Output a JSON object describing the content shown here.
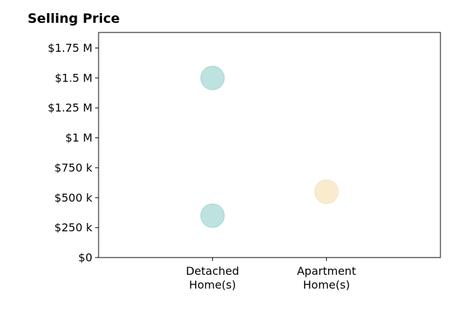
{
  "chart_data": {
    "type": "scatter",
    "title": "Selling Price",
    "xlabel": "",
    "ylabel": "",
    "categories": [
      [
        "Detached",
        "Home(s)"
      ],
      [
        "Apartment",
        "Home(s)"
      ]
    ],
    "points": [
      {
        "category_index": 0,
        "y": 1500000,
        "color": "#a8d8d4"
      },
      {
        "category_index": 0,
        "y": 350000,
        "color": "#a8d8d4"
      },
      {
        "category_index": 1,
        "y": 550000,
        "color": "#f7e4bd"
      }
    ],
    "yticks": [
      {
        "value": 0,
        "label": "$0"
      },
      {
        "value": 250000,
        "label": "$250 k"
      },
      {
        "value": 500000,
        "label": "$500 k"
      },
      {
        "value": 750000,
        "label": "$750 k"
      },
      {
        "value": 1000000,
        "label": "$1 M"
      },
      {
        "value": 1250000,
        "label": "$1.25 M"
      },
      {
        "value": 1500000,
        "label": "$1.5 M"
      },
      {
        "value": 1750000,
        "label": "$1.75 M"
      }
    ],
    "ylim": [
      0,
      1880000
    ],
    "grid": false,
    "legend": "none"
  }
}
